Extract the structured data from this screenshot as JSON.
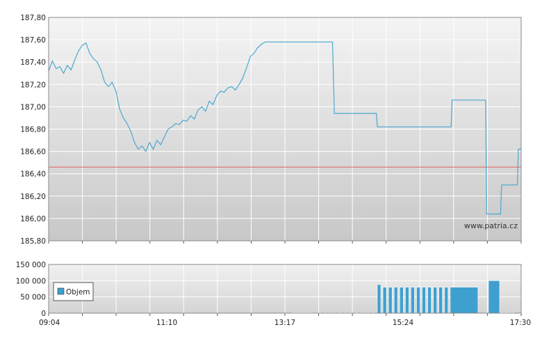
{
  "watermark": "www.patria.cz",
  "colors": {
    "price_line": "#4aa8d0",
    "reference_line": "#e35d5d",
    "volume_bar": "#3fa0d0",
    "grid": "#ffffff",
    "plot_bg_top": "#f3f3f3",
    "plot_bg_bottom": "#cbcbcb"
  },
  "chart_data": [
    {
      "type": "line",
      "x_ticks": [
        "09:04",
        "11:10",
        "13:17",
        "15:24",
        "17:30"
      ],
      "y_ticks": [
        "185,80",
        "186,00",
        "186,20",
        "186,40",
        "186,60",
        "186,80",
        "187,00",
        "187,20",
        "187,40",
        "187,60",
        "187,80"
      ],
      "ylim": [
        185.8,
        187.8
      ],
      "xlim_minutes": [
        544,
        1050
      ],
      "reference_line": 186.46,
      "series": [
        {
          "x": [
            544,
            548,
            552,
            556,
            560,
            564,
            568,
            572,
            576,
            580,
            584,
            588,
            592,
            596,
            600,
            604,
            608,
            612,
            616,
            620,
            624,
            628,
            632,
            636,
            640,
            644,
            648,
            652,
            656,
            660,
            664,
            668,
            672,
            676,
            680,
            684,
            688,
            692,
            696,
            700,
            704,
            708,
            712,
            716,
            720,
            724,
            728,
            732,
            736,
            740,
            744,
            748,
            752,
            756,
            760,
            764,
            768,
            772,
            776,
            780,
            784,
            788,
            792,
            796,
            800,
            804,
            808,
            812,
            816,
            820,
            824,
            828,
            832,
            836,
            840,
            844,
            848,
            850,
            854,
            895,
            896,
            900,
            902,
            905,
            906,
            975,
            976,
            1012,
            1013,
            1028,
            1029,
            1030,
            1046,
            1047,
            1050
          ],
          "values": [
            187.32,
            187.41,
            187.34,
            187.36,
            187.3,
            187.37,
            187.33,
            187.42,
            187.5,
            187.55,
            187.57,
            187.48,
            187.43,
            187.4,
            187.33,
            187.22,
            187.18,
            187.22,
            187.14,
            186.98,
            186.9,
            186.85,
            186.78,
            186.68,
            186.62,
            186.65,
            186.6,
            186.68,
            186.62,
            186.7,
            186.66,
            186.73,
            186.8,
            186.82,
            186.85,
            186.84,
            186.88,
            186.87,
            186.92,
            186.89,
            186.97,
            187.0,
            186.96,
            187.05,
            187.02,
            187.1,
            187.14,
            187.13,
            187.17,
            187.18,
            187.15,
            187.2,
            187.26,
            187.35,
            187.45,
            187.48,
            187.53,
            187.56,
            187.58,
            187.58,
            187.58,
            187.58,
            187.58,
            187.58,
            187.58,
            187.58,
            187.58,
            187.58,
            187.58,
            187.58,
            187.58,
            187.58,
            187.58,
            187.58,
            187.58,
            187.58,
            187.58,
            186.94,
            186.94,
            186.94,
            186.82,
            186.82,
            186.82,
            186.82,
            186.82,
            186.82,
            187.06,
            187.06,
            186.04,
            186.04,
            186.3,
            186.3,
            186.3,
            186.62,
            186.62
          ]
        }
      ]
    },
    {
      "type": "bar",
      "y_ticks": [
        "0",
        "50 000",
        "100 000",
        "150 000"
      ],
      "ylim": [
        0,
        150000
      ],
      "xlim_minutes": [
        544,
        1050
      ],
      "series": [
        {
          "name": "Objem",
          "x": [
            804,
            832,
            839,
            844,
            849,
            854,
            860,
            866,
            872,
            878,
            884,
            890,
            896,
            902,
            908,
            914,
            920,
            926,
            932,
            938,
            944,
            950,
            956,
            962,
            968,
            974,
            1015,
            1028
          ],
          "values": [
            1500,
            1500,
            1500,
            1500,
            1500,
            1500,
            1500,
            1500,
            1500,
            1500,
            1500,
            1500,
            88000,
            80000,
            80000,
            80000,
            80000,
            80000,
            80000,
            80000,
            80000,
            80000,
            80000,
            80000,
            80000,
            80000,
            100000,
            1500
          ],
          "widths": [
            30,
            6,
            4,
            4,
            4,
            5,
            5,
            5,
            5,
            5,
            5,
            5,
            5,
            5,
            5,
            5,
            5,
            5,
            5,
            5,
            5,
            5,
            5,
            5,
            5,
            40,
            16,
            20
          ]
        }
      ]
    }
  ]
}
